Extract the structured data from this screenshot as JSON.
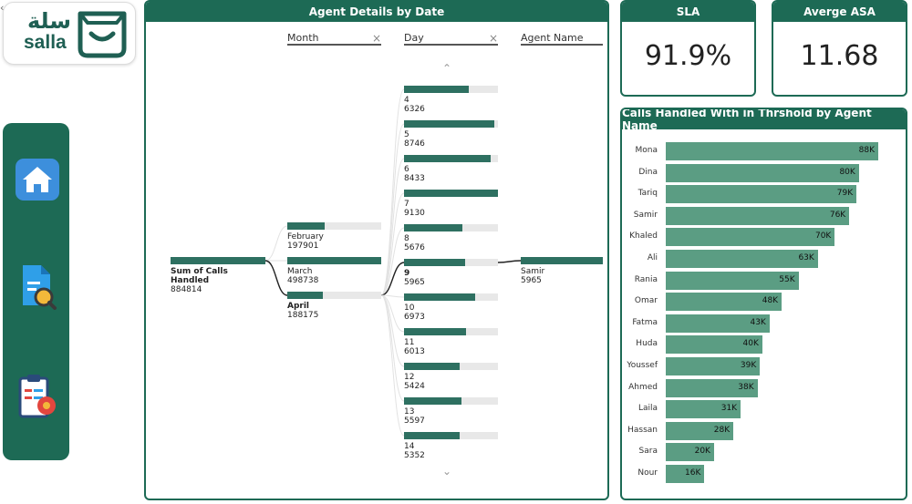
{
  "logo": {
    "arabic": "سلة",
    "latin": "salla"
  },
  "nav": {
    "items": [
      "home",
      "report-search",
      "clipboard-settings"
    ]
  },
  "tree": {
    "title": "Agent Details by Date",
    "columns": [
      {
        "label": "",
        "closable": false
      },
      {
        "label": "Month",
        "closable": true
      },
      {
        "label": "Day",
        "closable": true
      },
      {
        "label": "Agent Name",
        "closable": false
      }
    ],
    "root": {
      "label": "Sum of Calls Handled",
      "value": "884814",
      "fraction": 1.0
    },
    "months": [
      {
        "label": "February",
        "value": "197901",
        "fraction": 0.4,
        "bold": false
      },
      {
        "label": "March",
        "value": "498738",
        "fraction": 1.0,
        "bold": false
      },
      {
        "label": "April",
        "value": "188175",
        "fraction": 0.38,
        "bold": true
      }
    ],
    "days": [
      {
        "label": "4",
        "value": "6326",
        "fraction": 0.69,
        "bold": false
      },
      {
        "label": "5",
        "value": "8746",
        "fraction": 0.96,
        "bold": false
      },
      {
        "label": "6",
        "value": "8433",
        "fraction": 0.92,
        "bold": false
      },
      {
        "label": "7",
        "value": "9130",
        "fraction": 1.0,
        "bold": false
      },
      {
        "label": "8",
        "value": "5676",
        "fraction": 0.62,
        "bold": false
      },
      {
        "label": "9",
        "value": "5965",
        "fraction": 0.65,
        "bold": true
      },
      {
        "label": "10",
        "value": "6973",
        "fraction": 0.76,
        "bold": false
      },
      {
        "label": "11",
        "value": "6013",
        "fraction": 0.66,
        "bold": false
      },
      {
        "label": "12",
        "value": "5424",
        "fraction": 0.59,
        "bold": false
      },
      {
        "label": "13",
        "value": "5597",
        "fraction": 0.61,
        "bold": false
      },
      {
        "label": "14",
        "value": "5352",
        "fraction": 0.59,
        "bold": false
      }
    ],
    "agent": {
      "label": "Samir",
      "value": "5965",
      "fraction": 1.0
    }
  },
  "kpis": [
    {
      "title": "SLA",
      "value": "91.9%"
    },
    {
      "title": "Averge ASA",
      "value": "11.68"
    }
  ],
  "colors": {
    "brand": "#1d6a55",
    "bar": "#5b9d83",
    "tree_bar": "#2e7061"
  },
  "chart_data": {
    "type": "bar",
    "title": "Calls Handled With in Thrshold by Agent Name",
    "orientation": "horizontal",
    "categories": [
      "Mona",
      "Dina",
      "Tariq",
      "Samir",
      "Khaled",
      "Ali",
      "Rania",
      "Omar",
      "Fatma",
      "Huda",
      "Youssef",
      "Ahmed",
      "Laila",
      "Hassan",
      "Sara",
      "Nour"
    ],
    "values": [
      88,
      80,
      79,
      76,
      70,
      63,
      55,
      48,
      43,
      40,
      39,
      38,
      31,
      28,
      20,
      16
    ],
    "value_labels": [
      "88K",
      "80K",
      "79K",
      "76K",
      "70K",
      "63K",
      "55K",
      "48K",
      "43K",
      "40K",
      "39K",
      "38K",
      "31K",
      "28K",
      "20K",
      "16K"
    ],
    "xlim": [
      0,
      88
    ],
    "grid": false,
    "legend": "none"
  }
}
